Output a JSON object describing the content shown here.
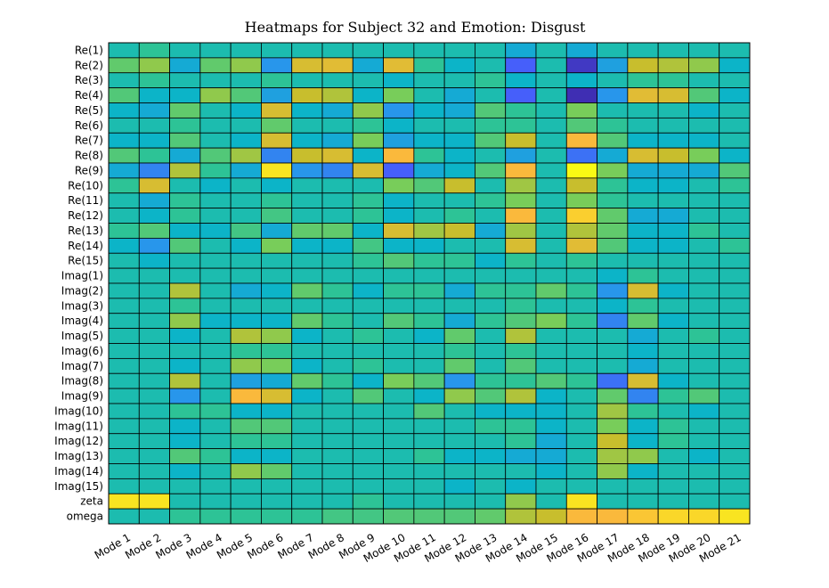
{
  "chart_data": {
    "type": "heatmap",
    "title": "Heatmaps for Subject 32 and Emotion: Disgust",
    "xlabel": "",
    "ylabel": "",
    "colormap": "parula",
    "colorbar": false,
    "x_categories": [
      "Mode 1",
      "Mode 2",
      "Mode 3",
      "Mode 4",
      "Mode 5",
      "Mode 6",
      "Mode 7",
      "Mode 8",
      "Mode 9",
      "Mode 10",
      "Mode 11",
      "Mode 12",
      "Mode 13",
      "Mode 14",
      "Mode 15",
      "Mode 16",
      "Mode 17",
      "Mode 18",
      "Mode 19",
      "Mode 20",
      "Mode 21"
    ],
    "y_categories": [
      "Re(1)",
      "Re(2)",
      "Re(3)",
      "Re(4)",
      "Re(5)",
      "Re(6)",
      "Re(7)",
      "Re(8)",
      "Re(9)",
      "Re(10)",
      "Re(11)",
      "Re(12)",
      "Re(13)",
      "Re(14)",
      "Re(15)",
      "Imag(1)",
      "Imag(2)",
      "Imag(3)",
      "Imag(4)",
      "Imag(5)",
      "Imag(6)",
      "Imag(7)",
      "Imag(8)",
      "Imag(9)",
      "Imag(10)",
      "Imag(11)",
      "Imag(12)",
      "Imag(13)",
      "Imag(14)",
      "Imag(15)",
      "zeta",
      "omega"
    ],
    "values_normalized": [
      [
        0.5,
        0.55,
        0.5,
        0.5,
        0.5,
        0.5,
        0.5,
        0.5,
        0.5,
        0.5,
        0.5,
        0.5,
        0.5,
        0.4,
        0.5,
        0.4,
        0.5,
        0.5,
        0.5,
        0.5,
        0.5
      ],
      [
        0.62,
        0.68,
        0.4,
        0.62,
        0.68,
        0.3,
        0.78,
        0.8,
        0.4,
        0.8,
        0.55,
        0.45,
        0.5,
        0.15,
        0.5,
        0.05,
        0.35,
        0.75,
        0.72,
        0.68,
        0.45
      ],
      [
        0.5,
        0.55,
        0.5,
        0.5,
        0.5,
        0.55,
        0.5,
        0.5,
        0.5,
        0.45,
        0.5,
        0.5,
        0.55,
        0.45,
        0.5,
        0.45,
        0.5,
        0.55,
        0.55,
        0.5,
        0.5
      ],
      [
        0.6,
        0.45,
        0.45,
        0.68,
        0.6,
        0.35,
        0.75,
        0.72,
        0.45,
        0.65,
        0.5,
        0.4,
        0.5,
        0.15,
        0.5,
        0.02,
        0.3,
        0.8,
        0.78,
        0.6,
        0.45
      ],
      [
        0.45,
        0.4,
        0.62,
        0.5,
        0.45,
        0.78,
        0.45,
        0.4,
        0.68,
        0.3,
        0.45,
        0.4,
        0.6,
        0.55,
        0.5,
        0.65,
        0.5,
        0.5,
        0.5,
        0.45,
        0.5
      ],
      [
        0.5,
        0.5,
        0.55,
        0.5,
        0.5,
        0.62,
        0.5,
        0.5,
        0.55,
        0.45,
        0.5,
        0.5,
        0.55,
        0.55,
        0.5,
        0.6,
        0.55,
        0.5,
        0.5,
        0.5,
        0.5
      ],
      [
        0.45,
        0.45,
        0.6,
        0.5,
        0.45,
        0.78,
        0.45,
        0.4,
        0.65,
        0.35,
        0.45,
        0.45,
        0.6,
        0.75,
        0.5,
        0.85,
        0.6,
        0.45,
        0.45,
        0.45,
        0.5
      ],
      [
        0.6,
        0.55,
        0.4,
        0.6,
        0.7,
        0.25,
        0.75,
        0.78,
        0.45,
        0.85,
        0.55,
        0.45,
        0.5,
        0.35,
        0.5,
        0.2,
        0.4,
        0.78,
        0.75,
        0.65,
        0.45
      ],
      [
        0.4,
        0.25,
        0.72,
        0.55,
        0.4,
        0.95,
        0.3,
        0.25,
        0.78,
        0.15,
        0.4,
        0.45,
        0.6,
        0.85,
        0.5,
        1.0,
        0.65,
        0.4,
        0.4,
        0.4,
        0.6
      ],
      [
        0.55,
        0.78,
        0.5,
        0.45,
        0.5,
        0.45,
        0.5,
        0.5,
        0.5,
        0.65,
        0.6,
        0.75,
        0.5,
        0.7,
        0.5,
        0.75,
        0.55,
        0.45,
        0.45,
        0.5,
        0.55
      ],
      [
        0.5,
        0.4,
        0.55,
        0.5,
        0.5,
        0.55,
        0.5,
        0.5,
        0.55,
        0.45,
        0.5,
        0.5,
        0.55,
        0.65,
        0.5,
        0.65,
        0.55,
        0.5,
        0.5,
        0.5,
        0.5
      ],
      [
        0.5,
        0.45,
        0.55,
        0.5,
        0.5,
        0.58,
        0.5,
        0.5,
        0.55,
        0.45,
        0.5,
        0.55,
        0.5,
        0.85,
        0.5,
        0.9,
        0.62,
        0.4,
        0.4,
        0.5,
        0.5
      ],
      [
        0.55,
        0.6,
        0.45,
        0.45,
        0.58,
        0.4,
        0.62,
        0.62,
        0.45,
        0.78,
        0.7,
        0.75,
        0.4,
        0.7,
        0.5,
        0.72,
        0.62,
        0.45,
        0.45,
        0.55,
        0.5
      ],
      [
        0.45,
        0.3,
        0.6,
        0.5,
        0.45,
        0.65,
        0.45,
        0.45,
        0.58,
        0.45,
        0.45,
        0.5,
        0.5,
        0.78,
        0.5,
        0.8,
        0.6,
        0.45,
        0.45,
        0.5,
        0.55
      ],
      [
        0.5,
        0.45,
        0.5,
        0.5,
        0.5,
        0.5,
        0.5,
        0.5,
        0.55,
        0.6,
        0.55,
        0.55,
        0.45,
        0.55,
        0.5,
        0.55,
        0.5,
        0.5,
        0.5,
        0.5,
        0.5
      ],
      [
        0.5,
        0.5,
        0.5,
        0.5,
        0.5,
        0.5,
        0.5,
        0.5,
        0.5,
        0.5,
        0.5,
        0.5,
        0.5,
        0.5,
        0.5,
        0.5,
        0.45,
        0.55,
        0.5,
        0.5,
        0.5
      ],
      [
        0.5,
        0.5,
        0.72,
        0.5,
        0.4,
        0.45,
        0.62,
        0.55,
        0.45,
        0.55,
        0.55,
        0.4,
        0.55,
        0.55,
        0.62,
        0.55,
        0.3,
        0.78,
        0.45,
        0.5,
        0.5
      ],
      [
        0.5,
        0.5,
        0.55,
        0.5,
        0.5,
        0.5,
        0.5,
        0.5,
        0.5,
        0.5,
        0.5,
        0.5,
        0.5,
        0.55,
        0.5,
        0.5,
        0.45,
        0.55,
        0.5,
        0.5,
        0.5
      ],
      [
        0.5,
        0.5,
        0.68,
        0.45,
        0.45,
        0.45,
        0.62,
        0.55,
        0.5,
        0.6,
        0.55,
        0.4,
        0.55,
        0.6,
        0.65,
        0.55,
        0.25,
        0.62,
        0.45,
        0.5,
        0.5
      ],
      [
        0.5,
        0.5,
        0.45,
        0.5,
        0.72,
        0.68,
        0.45,
        0.5,
        0.55,
        0.5,
        0.45,
        0.62,
        0.5,
        0.72,
        0.5,
        0.5,
        0.5,
        0.4,
        0.5,
        0.55,
        0.5
      ],
      [
        0.5,
        0.5,
        0.5,
        0.5,
        0.55,
        0.55,
        0.5,
        0.5,
        0.5,
        0.5,
        0.5,
        0.55,
        0.5,
        0.55,
        0.5,
        0.5,
        0.5,
        0.45,
        0.5,
        0.5,
        0.5
      ],
      [
        0.5,
        0.5,
        0.45,
        0.5,
        0.68,
        0.65,
        0.45,
        0.5,
        0.55,
        0.5,
        0.5,
        0.62,
        0.5,
        0.6,
        0.5,
        0.5,
        0.5,
        0.4,
        0.5,
        0.5,
        0.5
      ],
      [
        0.5,
        0.5,
        0.72,
        0.5,
        0.35,
        0.4,
        0.62,
        0.55,
        0.45,
        0.65,
        0.6,
        0.3,
        0.55,
        0.55,
        0.6,
        0.55,
        0.2,
        0.78,
        0.45,
        0.5,
        0.5
      ],
      [
        0.5,
        0.5,
        0.3,
        0.5,
        0.85,
        0.78,
        0.45,
        0.5,
        0.6,
        0.5,
        0.45,
        0.68,
        0.6,
        0.72,
        0.45,
        0.5,
        0.62,
        0.25,
        0.55,
        0.6,
        0.5
      ],
      [
        0.5,
        0.5,
        0.55,
        0.55,
        0.45,
        0.45,
        0.5,
        0.5,
        0.5,
        0.5,
        0.6,
        0.5,
        0.45,
        0.45,
        0.45,
        0.5,
        0.7,
        0.55,
        0.5,
        0.45,
        0.5
      ],
      [
        0.5,
        0.5,
        0.45,
        0.5,
        0.6,
        0.6,
        0.5,
        0.5,
        0.5,
        0.5,
        0.5,
        0.5,
        0.55,
        0.55,
        0.45,
        0.5,
        0.65,
        0.45,
        0.55,
        0.5,
        0.5
      ],
      [
        0.5,
        0.5,
        0.45,
        0.5,
        0.55,
        0.55,
        0.5,
        0.5,
        0.5,
        0.5,
        0.5,
        0.5,
        0.5,
        0.55,
        0.4,
        0.5,
        0.75,
        0.45,
        0.55,
        0.5,
        0.5
      ],
      [
        0.5,
        0.5,
        0.6,
        0.55,
        0.45,
        0.45,
        0.5,
        0.5,
        0.5,
        0.5,
        0.55,
        0.45,
        0.45,
        0.4,
        0.4,
        0.5,
        0.7,
        0.68,
        0.5,
        0.45,
        0.5
      ],
      [
        0.5,
        0.5,
        0.45,
        0.5,
        0.68,
        0.62,
        0.5,
        0.5,
        0.5,
        0.5,
        0.5,
        0.5,
        0.5,
        0.5,
        0.45,
        0.5,
        0.68,
        0.45,
        0.5,
        0.5,
        0.5
      ],
      [
        0.5,
        0.5,
        0.5,
        0.5,
        0.5,
        0.5,
        0.5,
        0.5,
        0.5,
        0.5,
        0.5,
        0.45,
        0.5,
        0.45,
        0.5,
        0.5,
        0.5,
        0.5,
        0.5,
        0.5,
        0.5
      ],
      [
        0.95,
        0.95,
        0.5,
        0.5,
        0.5,
        0.5,
        0.5,
        0.5,
        0.55,
        0.5,
        0.5,
        0.5,
        0.5,
        0.68,
        0.5,
        0.95,
        0.5,
        0.5,
        0.5,
        0.5,
        0.5
      ],
      [
        0.5,
        0.5,
        0.55,
        0.55,
        0.55,
        0.55,
        0.55,
        0.58,
        0.58,
        0.6,
        0.6,
        0.6,
        0.62,
        0.72,
        0.75,
        0.85,
        0.85,
        0.88,
        0.92,
        0.92,
        0.95
      ]
    ]
  }
}
